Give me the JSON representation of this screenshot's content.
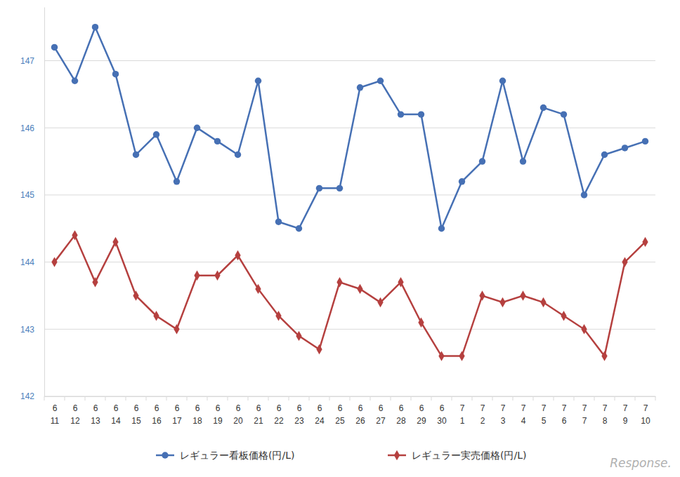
{
  "chart_data": {
    "type": "line",
    "categories": [
      "6\n11",
      "6\n12",
      "6\n13",
      "6\n14",
      "6\n15",
      "6\n16",
      "6\n17",
      "6\n18",
      "6\n19",
      "6\n20",
      "6\n21",
      "6\n22",
      "6\n23",
      "6\n24",
      "6\n25",
      "6\n26",
      "6\n27",
      "6\n28",
      "6\n29",
      "6\n30",
      "7\n1",
      "7\n2",
      "7\n3",
      "7\n4",
      "7\n5",
      "7\n6",
      "7\n7",
      "7\n8",
      "7\n9",
      "7\n10"
    ],
    "series": [
      {
        "name": "レギュラー看板価格(円/L)",
        "color": "#4670b4",
        "marker": "circle",
        "values": [
          147.2,
          146.7,
          147.5,
          146.8,
          145.6,
          145.9,
          145.2,
          146.0,
          145.8,
          145.6,
          146.7,
          144.6,
          144.5,
          145.1,
          145.1,
          146.6,
          146.7,
          146.2,
          146.2,
          144.5,
          145.2,
          145.5,
          146.7,
          145.5,
          146.3,
          146.2,
          145.0,
          145.6,
          145.7,
          145.8
        ]
      },
      {
        "name": "レギュラー実売価格(円/L)",
        "color": "#b5403f",
        "marker": "diamond",
        "values": [
          144.0,
          144.4,
          143.7,
          144.3,
          143.5,
          143.2,
          143.0,
          143.8,
          143.8,
          144.1,
          143.6,
          143.2,
          142.9,
          142.7,
          143.7,
          143.6,
          143.4,
          143.7,
          143.1,
          142.6,
          142.6,
          143.5,
          143.4,
          143.5,
          143.4,
          143.2,
          143.0,
          142.6,
          144.0,
          144.3
        ]
      }
    ],
    "ylim": [
      142,
      147.8
    ],
    "yticks": [
      142,
      143,
      144,
      145,
      146,
      147
    ],
    "grid": true,
    "legend": "bottom",
    "annotations": [
      "Response."
    ]
  }
}
